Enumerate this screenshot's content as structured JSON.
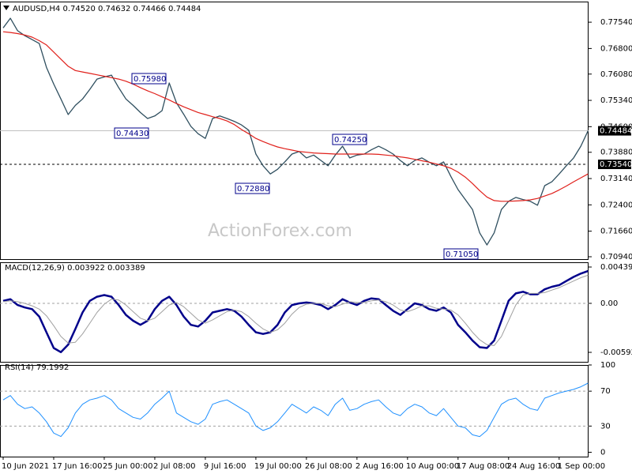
{
  "chart_data": [
    {
      "type": "line",
      "title": "AUDUSD,H4  0.74520 0.74632 0.74466 0.74484",
      "watermark": "ActionForex.com",
      "annotations": [
        "0.75980",
        "0.74430",
        "0.72880",
        "0.74250",
        "0.71050"
      ],
      "price_marks": [
        {
          "value": 0.74484,
          "label": "0.74484"
        },
        {
          "value": 0.7354,
          "label": "0.73540"
        }
      ],
      "ylim": [
        0.70873,
        0.7812
      ],
      "yticks": [
        {
          "value": 0.7754,
          "label": "0.77540"
        },
        {
          "value": 0.768,
          "label": "0.76800"
        },
        {
          "value": 0.7608,
          "label": "0.76080"
        },
        {
          "value": 0.7534,
          "label": "0.75340"
        },
        {
          "value": 0.746,
          "label": "0.74600"
        },
        {
          "value": 0.7388,
          "label": "0.73880"
        },
        {
          "value": 0.7314,
          "label": "0.73140"
        },
        {
          "value": 0.724,
          "label": "0.72400"
        },
        {
          "value": 0.7166,
          "label": "0.71660"
        },
        {
          "value": 0.7094,
          "label": "0.70940"
        }
      ],
      "series": [
        {
          "color": "#2f4f5f",
          "width": 1.3,
          "values": [
            0.7738,
            0.7765,
            0.773,
            0.7716,
            0.7705,
            0.7694,
            0.7627,
            0.758,
            0.7538,
            0.7494,
            0.752,
            0.7538,
            0.7565,
            0.7594,
            0.76,
            0.7605,
            0.757,
            0.7538,
            0.752,
            0.75,
            0.7483,
            0.749,
            0.7505,
            0.7583,
            0.7527,
            0.7495,
            0.7461,
            0.744,
            0.7427,
            0.7483,
            0.749,
            0.7483,
            0.7475,
            0.7465,
            0.745,
            0.7383,
            0.735,
            0.7327,
            0.734,
            0.7361,
            0.7383,
            0.739,
            0.7372,
            0.738,
            0.7365,
            0.735,
            0.738,
            0.7405,
            0.7372,
            0.738,
            0.7383,
            0.7395,
            0.7405,
            0.7395,
            0.7383,
            0.7365,
            0.735,
            0.7365,
            0.7372,
            0.736,
            0.735,
            0.7361,
            0.732,
            0.7283,
            0.7255,
            0.7227,
            0.7161,
            0.7127,
            0.7161,
            0.7227,
            0.725,
            0.7261,
            0.7255,
            0.725,
            0.7239,
            0.7294,
            0.7305,
            0.7327,
            0.735,
            0.7372,
            0.7405,
            0.7448
          ]
        },
        {
          "color": "#e0201b",
          "width": 1.2,
          "values": [
            0.7727,
            0.7725,
            0.7722,
            0.7718,
            0.7712,
            0.7702,
            0.769,
            0.767,
            0.765,
            0.763,
            0.7618,
            0.7614,
            0.761,
            0.7606,
            0.7602,
            0.7598,
            0.7594,
            0.7588,
            0.758,
            0.757,
            0.7561,
            0.7553,
            0.7544,
            0.7535,
            0.7525,
            0.7516,
            0.7508,
            0.75,
            0.7494,
            0.7488,
            0.7483,
            0.7476,
            0.7466,
            0.7452,
            0.744,
            0.7427,
            0.7418,
            0.741,
            0.7403,
            0.7398,
            0.7394,
            0.739,
            0.7388,
            0.7386,
            0.7385,
            0.7384,
            0.7383,
            0.7383,
            0.7383,
            0.7383,
            0.7383,
            0.7383,
            0.7382,
            0.738,
            0.7378,
            0.7375,
            0.7372,
            0.7368,
            0.7364,
            0.736,
            0.7355,
            0.735,
            0.7343,
            0.7332,
            0.7318,
            0.73,
            0.728,
            0.7262,
            0.7252,
            0.725,
            0.725,
            0.7251,
            0.7252,
            0.7254,
            0.7258,
            0.7265,
            0.7272,
            0.7282,
            0.7293,
            0.7305,
            0.7316,
            0.7327
          ]
        }
      ]
    },
    {
      "type": "line",
      "title": "MACD(12,26,9) 0.003922 0.003389",
      "ylim": [
        -0.007068,
        0.004964
      ],
      "yticks": [
        0.004391,
        {
          "value": 0,
          "label": "0.00"
        },
        -0.005922
      ],
      "levels": [
        0
      ],
      "series": [
        {
          "color": "#00008b",
          "width": 2.5,
          "values": [
            0.0003,
            0.0005,
            -0.0002,
            -0.0005,
            -0.0007,
            -0.0016,
            -0.0035,
            -0.0054,
            -0.0059,
            -0.005,
            -0.0031,
            -0.0011,
            0.0003,
            0.0008,
            0.001,
            0.0008,
            -0.0002,
            -0.0014,
            -0.0021,
            -0.0026,
            -0.0021,
            -0.0007,
            0.0003,
            0.0008,
            -0.0002,
            -0.0016,
            -0.0026,
            -0.0028,
            -0.0021,
            -0.0011,
            -0.0009,
            -0.0007,
            -0.0009,
            -0.0016,
            -0.0026,
            -0.0035,
            -0.0037,
            -0.0035,
            -0.0026,
            -0.0011,
            -0.0002,
            0,
            0.0001,
            0,
            -0.0002,
            -0.0007,
            -0.0002,
            0.0005,
            0.0001,
            -0.0002,
            0.0003,
            0.0006,
            0.0005,
            -0.0002,
            -0.0009,
            -0.0014,
            -0.0007,
            0,
            -0.0002,
            -0.0007,
            -0.0009,
            -0.0005,
            -0.0011,
            -0.0026,
            -0.0035,
            -0.0045,
            -0.0053,
            -0.0054,
            -0.0045,
            -0.0021,
            0.0003,
            0.0012,
            0.0014,
            0.0011,
            0.0011,
            0.0017,
            0.002,
            0.0022,
            0.0027,
            0.0032,
            0.0036,
            0.0039
          ]
        },
        {
          "color": "#a0a0a0",
          "width": 1,
          "values": [
            0.0002,
            0.0003,
            0.0002,
            0,
            -0.0003,
            -0.0007,
            -0.0015,
            -0.0027,
            -0.004,
            -0.0048,
            -0.0047,
            -0.0037,
            -0.0024,
            -0.0011,
            -0.0001,
            0.0005,
            0.0004,
            -0.0002,
            -0.001,
            -0.0018,
            -0.0021,
            -0.0018,
            -0.001,
            -0.0002,
            0.0001,
            -0.0004,
            -0.0012,
            -0.002,
            -0.0024,
            -0.002,
            -0.0015,
            -0.001,
            -0.0008,
            -0.001,
            -0.0016,
            -0.0024,
            -0.0031,
            -0.0035,
            -0.0032,
            -0.0024,
            -0.0013,
            -0.0005,
            -0.0001,
            0,
            0,
            -0.0003,
            -0.0004,
            -0.0001,
            0.0002,
            0.0001,
            0.0001,
            0.0003,
            0.0004,
            0.0002,
            -0.0002,
            -0.0008,
            -0.001,
            -0.0007,
            -0.0003,
            -0.0003,
            -0.0006,
            -0.0007,
            -0.0008,
            -0.0014,
            -0.0024,
            -0.0035,
            -0.0044,
            -0.005,
            -0.0051,
            -0.004,
            -0.0021,
            -0.0002,
            0.001,
            0.0012,
            0.0012,
            0.0013,
            0.0016,
            0.0019,
            0.0023,
            0.0027,
            0.0031,
            0.0034
          ]
        }
      ]
    },
    {
      "type": "line",
      "title": "RSI(14) 79.1992",
      "ylim": [
        -5,
        100
      ],
      "yticks": [
        100,
        70,
        30,
        0
      ],
      "levels": [
        70,
        30
      ],
      "categories": [
        "10 Jun 2021",
        null,
        null,
        null,
        null,
        null,
        null,
        "17 Jun 16:00",
        null,
        null,
        null,
        null,
        null,
        null,
        "25 Jun 00:00",
        null,
        null,
        null,
        null,
        null,
        null,
        "2 Jul 08:00",
        null,
        null,
        null,
        null,
        null,
        null,
        "9 Jul 16:00",
        null,
        null,
        null,
        null,
        null,
        null,
        "19 Jul 00:00",
        null,
        null,
        null,
        null,
        null,
        null,
        "26 Jul 08:00",
        null,
        null,
        null,
        null,
        null,
        null,
        "2 Aug 16:00",
        null,
        null,
        null,
        null,
        null,
        null,
        "10 Aug 00:00",
        null,
        null,
        null,
        null,
        null,
        null,
        "17 Aug 08:00",
        null,
        null,
        null,
        null,
        null,
        null,
        "24 Aug 16:00",
        null,
        null,
        null,
        null,
        null,
        null,
        "1 Sep 00:00",
        null,
        null,
        null,
        null
      ],
      "series": [
        {
          "color": "#1e90ff",
          "width": 1,
          "values": [
            60,
            65,
            55,
            50,
            52,
            45,
            35,
            22,
            18,
            28,
            45,
            55,
            60,
            62,
            65,
            60,
            50,
            45,
            40,
            38,
            45,
            55,
            62,
            70,
            45,
            40,
            35,
            32,
            38,
            55,
            58,
            60,
            55,
            50,
            45,
            30,
            25,
            28,
            35,
            45,
            55,
            50,
            45,
            52,
            48,
            42,
            55,
            62,
            48,
            50,
            55,
            58,
            60,
            52,
            45,
            42,
            50,
            55,
            52,
            45,
            42,
            50,
            40,
            30,
            28,
            20,
            18,
            25,
            40,
            55,
            60,
            62,
            55,
            50,
            48,
            62,
            65,
            68,
            70,
            72,
            75,
            79.1992
          ]
        }
      ]
    }
  ]
}
